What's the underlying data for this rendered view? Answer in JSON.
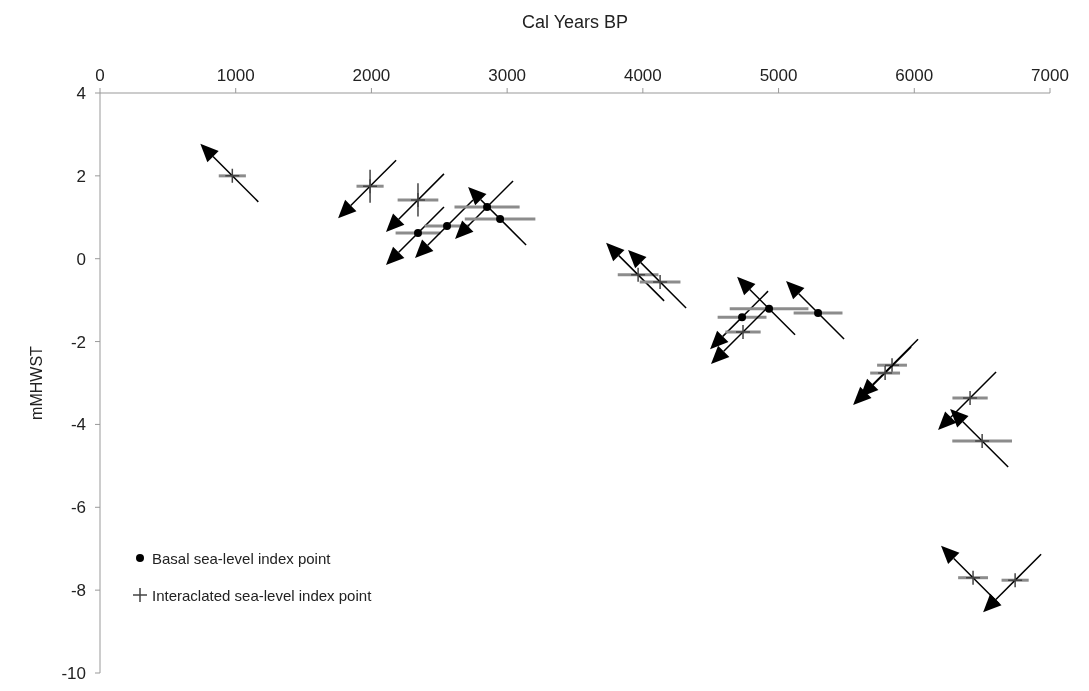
{
  "chart_data": {
    "type": "scatter",
    "xlabel": "Cal Years BP",
    "ylabel": "mMHWST",
    "xlim": [
      0,
      7000
    ],
    "xticks": [
      0,
      1000,
      2000,
      3000,
      4000,
      5000,
      6000,
      7000
    ],
    "ylim": [
      -10,
      4
    ],
    "yticks": [
      -10,
      -8,
      -6,
      -4,
      -2,
      0,
      2,
      4
    ],
    "grid": false,
    "legend": "bottom left",
    "series": [
      {
        "name": "Basal sea-level index point",
        "color": "#000000",
        "marker": "circle",
        "x": [
          2343,
          2557,
          2852,
          2948,
          4731,
          4930,
          5291
        ],
        "values": [
          0.62,
          0.79,
          1.25,
          0.96,
          -1.41,
          -1.21,
          -1.31
        ],
        "xerrors": [
          165,
          165,
          240,
          260,
          180,
          290,
          180
        ]
      },
      {
        "name": "Interaclated sea-level index point",
        "color": "#444444",
        "marker": "cross",
        "x": [
          975,
          1990,
          2343,
          3965,
          4127,
          4738,
          5836,
          5785,
          6411,
          6500,
          6433,
          6743
        ],
        "values": [
          2.0,
          1.75,
          1.42,
          -0.39,
          -0.56,
          -1.77,
          -2.57,
          -2.76,
          -3.36,
          -4.4,
          -7.7,
          -7.76
        ],
        "xerrors": [
          100,
          100,
          150,
          150,
          150,
          130,
          110,
          110,
          130,
          220,
          110,
          100
        ],
        "errors": [
          null,
          0.4,
          0.4,
          null,
          null,
          null,
          null,
          null,
          null,
          null,
          null,
          null
        ]
      }
    ]
  }
}
